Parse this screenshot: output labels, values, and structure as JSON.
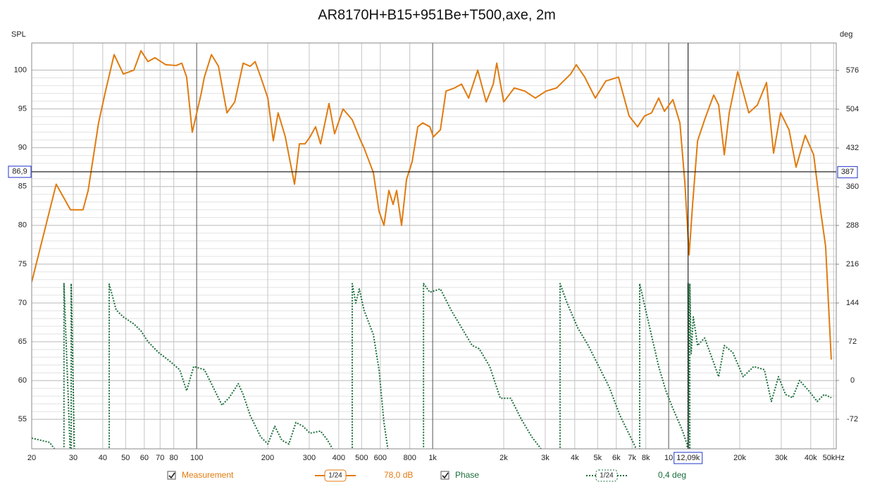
{
  "chart_data": {
    "type": "line",
    "title": "AR8170H+B15+951Be+T500,axe, 2m",
    "y_label": "SPL",
    "y2_label": "deg",
    "xscale": "log",
    "grid": true,
    "xlim": [
      20,
      51300
    ],
    "ylim": [
      51.2,
      103.5
    ],
    "y2lim": [
      -127,
      627
    ],
    "xticks": [
      20,
      30,
      40,
      50,
      60,
      70,
      80,
      100,
      200,
      300,
      400,
      500,
      600,
      800,
      {
        "value": 1000,
        "label": "1k"
      },
      {
        "value": 2000,
        "label": "2k"
      },
      {
        "value": 3000,
        "label": "3k"
      },
      {
        "value": 4000,
        "label": "4k"
      },
      {
        "value": 5000,
        "label": "5k"
      },
      {
        "value": 6000,
        "label": "6k"
      },
      {
        "value": 7000,
        "label": "7k"
      },
      {
        "value": 8000,
        "label": "8k"
      },
      {
        "value": 10000,
        "label": "10"
      },
      {
        "value": 20000,
        "label": "20k"
      },
      {
        "value": 30000,
        "label": "30k"
      },
      {
        "value": 40000,
        "label": "40k"
      },
      {
        "value": 50000,
        "label": "50kHz"
      }
    ],
    "yticks": [
      55,
      60,
      65,
      70,
      75,
      80,
      85,
      90,
      95,
      100
    ],
    "y2ticks": [
      -72,
      0,
      72,
      144,
      216,
      288,
      360,
      432,
      504,
      576
    ],
    "cursor": {
      "x": {
        "value": 12090,
        "label": "12,09k"
      },
      "y": {
        "value": 86.9,
        "label": "86,9"
      },
      "y2": {
        "value": 387,
        "label": "387"
      }
    },
    "series": [
      {
        "name": "Measurement",
        "color": "#e07b10",
        "smoothing": "1/24",
        "readout": "78,0 dB",
        "x": [
          20,
          25.4,
          29.2,
          33.0,
          34.7,
          38.4,
          41.1,
          44.7,
          48.9,
          54.2,
          58.1,
          62.2,
          66.6,
          73.9,
          81.9,
          86.5,
          90.7,
          95.8,
          104.2,
          107.8,
          115.5,
          123.7,
          134.4,
          145,
          157.4,
          168.6,
          176.9,
          186.9,
          200.3,
          211.2,
          221.4,
          237.5,
          259.8,
          272.5,
          287.9,
          302.2,
          319.1,
          334.9,
          363.7,
          384.2,
          417.2,
          456.2,
          495.5,
          511.6,
          560.8,
          592.6,
          621.7,
          652.3,
          679.8,
          703.6,
          738.3,
          774.8,
          818.6,
          865.1,
          907.7,
          972.9,
          1007,
          1078,
          1139,
          1237,
          1326,
          1420,
          1552,
          1686,
          1806,
          1869,
          2000,
          2217,
          2459,
          2724,
          3021,
          3349,
          3587,
          3843,
          4059,
          4409,
          4888,
          5416,
          6131,
          6796,
          7384,
          7906,
          8467,
          9073,
          9596,
          10420,
          11160,
          11710,
          12210,
          12630,
          13260,
          14200,
          15520,
          16290,
          17210,
          18060,
          19610,
          21860,
          23750,
          25980,
          27830,
          29800,
          32370,
          34660,
          37900,
          41150,
          44080,
          46240,
          48870
        ],
        "values": [
          72.7,
          85.3,
          82.0,
          82.0,
          84.5,
          93.2,
          97.3,
          102,
          99.5,
          100,
          102.5,
          101.1,
          101.6,
          100.7,
          100.6,
          100.9,
          99.1,
          92,
          96.8,
          99.1,
          102,
          100.5,
          94.5,
          95.9,
          100.9,
          100.5,
          101.1,
          99.1,
          96.4,
          90.9,
          94.5,
          91.4,
          85.3,
          90.5,
          90.5,
          91.4,
          92.7,
          90.5,
          95.7,
          91.8,
          95,
          93.6,
          90.9,
          90,
          86.8,
          81.8,
          80,
          84.5,
          82.7,
          84.5,
          80,
          85.9,
          88.2,
          92.7,
          93.2,
          92.7,
          91.4,
          92.3,
          97.3,
          97.7,
          98.2,
          96.4,
          100,
          95.9,
          98.2,
          100.9,
          95.9,
          97.7,
          97.3,
          96.4,
          97.3,
          97.7,
          98.6,
          99.5,
          100.7,
          99.1,
          96.4,
          98.6,
          99.1,
          94.1,
          92.7,
          94.1,
          94.5,
          96.4,
          94.7,
          96.2,
          93.2,
          85.5,
          76.2,
          82.7,
          90.9,
          93.6,
          96.8,
          95.5,
          89.1,
          94.5,
          99.8,
          94.5,
          95.5,
          98.4,
          89.3,
          94.5,
          92.3,
          87.5,
          91.6,
          89.1,
          81.8,
          77.3,
          62.7
        ]
      },
      {
        "name": "Phase",
        "color": "#1b6e3c",
        "axis": "y2",
        "smoothing": "1/24",
        "readout": "0,4 deg",
        "x": [
          20,
          23.8,
          26.3,
          27.4,
          27.4,
          29.4,
          29.4,
          30.5,
          42.6,
          42.6,
          45.6,
          48.9,
          54.2,
          58.1,
          62.2,
          68.9,
          76.4,
          84.7,
          90.7,
          97.2,
          107.8,
          115.5,
          128.1,
          137.2,
          150.1,
          157.4,
          168.6,
          186.9,
          200.3,
          214.3,
          229.5,
          245.9,
          263.4,
          282.1,
          302.2,
          334.9,
          358.7,
          376.3,
          456.2,
          456.2,
          472.3,
          488.7,
          511.6,
          560.8,
          592.6,
          621.7,
          652.3,
          914.6,
          914.6,
          972.9,
          1078,
          1196,
          1326,
          1470,
          1574,
          1745,
          1935,
          2142,
          2375,
          2633,
          2878,
          3466,
          3466,
          3712,
          4117,
          4564,
          5059,
          5608,
          6217,
          6893,
          7284,
          7537,
          7537,
          8183,
          9073,
          9730,
          10420,
          11390,
          11960,
          12090,
          12090,
          12290,
          12290,
          12460,
          12720,
          13260,
          14200,
          15520,
          16290,
          17210,
          18690,
          20690,
          22950,
          25440,
          27240,
          29200,
          31270,
          33490,
          35870,
          39220,
          42590,
          45620,
          48870
        ],
        "values": [
          -107,
          -115,
          -140,
          -180,
          180,
          -180,
          180,
          -180,
          -180,
          179,
          131,
          118,
          105,
          92,
          72,
          52,
          37,
          20,
          -19,
          26,
          20,
          -6,
          -46,
          -32,
          -6,
          -26,
          -65,
          -105,
          -118,
          -85,
          -111,
          -118,
          -78,
          -85,
          -98,
          -94,
          -111,
          -127,
          -180,
          180,
          144,
          170,
          131,
          85,
          20,
          -78,
          -140,
          -180,
          180,
          164,
          170,
          131,
          98,
          65,
          59,
          26,
          -33,
          -33,
          -72,
          -105,
          -127,
          -180,
          180,
          144,
          98,
          65,
          26,
          -13,
          -65,
          -105,
          -127,
          -180,
          180,
          111,
          26,
          -19,
          -52,
          -91,
          -118,
          -180,
          180,
          -180,
          180,
          50,
          118,
          65,
          79,
          33,
          7,
          65,
          52,
          7,
          26,
          20,
          -39,
          7,
          -26,
          -32,
          0,
          -19,
          -39,
          -26,
          -32
        ]
      }
    ]
  }
}
